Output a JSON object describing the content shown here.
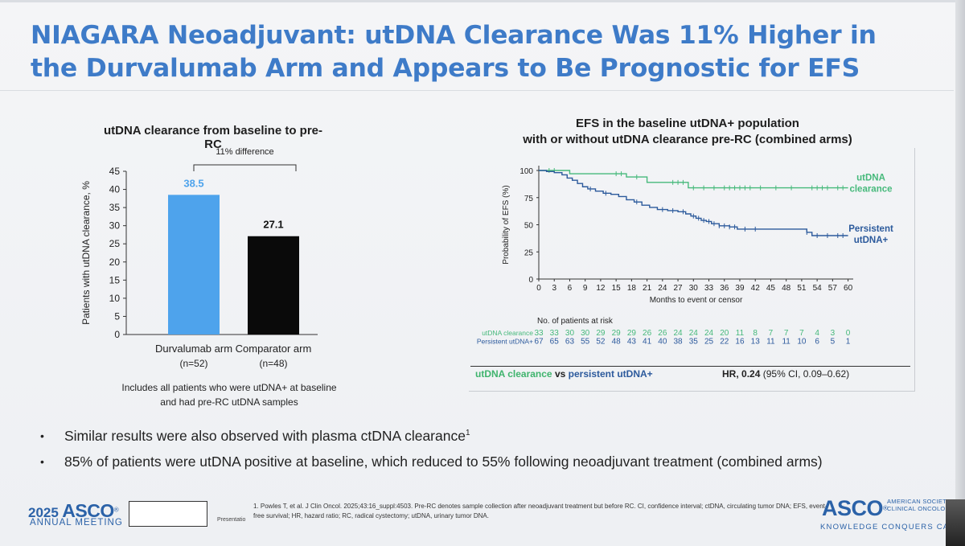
{
  "title": "NIAGARA Neoadjuvant: utDNA Clearance Was 11% Higher in the Durvalumab Arm and Appears to Be Prognostic for EFS",
  "chart_data": [
    {
      "type": "bar",
      "title": "utDNA clearance from baseline to pre-RC",
      "ylabel": "Patients with utDNA clearance, %",
      "ylim": [
        0,
        45
      ],
      "yticks": [
        0,
        5,
        10,
        15,
        20,
        25,
        30,
        35,
        40,
        45
      ],
      "categories": [
        "Durvalumab arm",
        "Comparator arm"
      ],
      "category_n": [
        "(n=52)",
        "(n=48)"
      ],
      "values": [
        38.5,
        27.1
      ],
      "value_labels": [
        "38.5",
        "27.1"
      ],
      "colors": [
        "#4ea3ec",
        "#0a0a0a"
      ],
      "difference_label": "11% difference",
      "note": [
        "Includes all patients who were utDNA+ at baseline",
        "and had pre-RC utDNA samples"
      ]
    },
    {
      "type": "line",
      "title": [
        "EFS in the baseline utDNA+ population",
        "with or without utDNA clearance pre-RC (combined arms)"
      ],
      "xlabel": "Months to event or censor",
      "ylabel": "Probability of EFS (%)",
      "xlim": [
        0,
        61
      ],
      "ylim": [
        0,
        100
      ],
      "xticks": [
        0,
        3,
        6,
        9,
        12,
        15,
        18,
        21,
        24,
        27,
        30,
        33,
        36,
        39,
        42,
        45,
        48,
        51,
        54,
        57,
        60
      ],
      "yticks": [
        0,
        25,
        50,
        75,
        100
      ],
      "series": [
        {
          "name": "utDNA clearance",
          "label_lines": [
            "utDNA",
            "clearance"
          ],
          "color": "#46b97b",
          "steps": [
            [
              0,
              100
            ],
            [
              6,
              97
            ],
            [
              17,
              94
            ],
            [
              21,
              89
            ],
            [
              29,
              84
            ],
            [
              60,
              84
            ]
          ],
          "censors": [
            2,
            3,
            15,
            16,
            19,
            26,
            27,
            28,
            30,
            32,
            34,
            36,
            37,
            38,
            39,
            40,
            41,
            43,
            46,
            49,
            53,
            54,
            55,
            56,
            58,
            59
          ]
        },
        {
          "name": "Persistent utDNA+",
          "label_lines": [
            "Persistent",
            "utDNA+"
          ],
          "color": "#2c5a9c",
          "steps": [
            [
              0,
              100
            ],
            [
              1.5,
              99
            ],
            [
              3,
              98
            ],
            [
              4.5,
              96
            ],
            [
              5.5,
              93
            ],
            [
              6.5,
              91
            ],
            [
              7.5,
              88
            ],
            [
              8.5,
              85
            ],
            [
              9.5,
              83
            ],
            [
              11,
              81
            ],
            [
              12.5,
              79
            ],
            [
              14,
              78
            ],
            [
              15.5,
              76
            ],
            [
              17,
              73
            ],
            [
              18.5,
              71
            ],
            [
              20,
              68
            ],
            [
              21.5,
              66
            ],
            [
              23,
              64
            ],
            [
              25,
              63
            ],
            [
              27,
              62
            ],
            [
              28.5,
              60
            ],
            [
              29.5,
              58
            ],
            [
              30.5,
              56
            ],
            [
              31.5,
              54
            ],
            [
              32.5,
              53
            ],
            [
              33.5,
              51
            ],
            [
              35,
              49
            ],
            [
              37,
              48
            ],
            [
              38.5,
              46
            ],
            [
              40,
              46
            ],
            [
              52,
              43
            ],
            [
              53,
              40
            ],
            [
              60,
              40
            ]
          ],
          "censors": [
            10,
            13,
            19,
            24,
            26,
            28,
            30,
            31,
            32,
            33,
            34,
            35,
            36,
            37,
            38,
            40,
            42,
            52,
            54,
            56,
            58,
            59
          ]
        }
      ],
      "at_risk_title": "No. of patients at risk",
      "at_risk": [
        {
          "label": "utDNA clearance",
          "color": "#46b97b",
          "values": [
            "33",
            "33",
            "30",
            "30",
            "29",
            "29",
            "29",
            "26",
            "26",
            "24",
            "24",
            "24",
            "20",
            "11",
            "8",
            "7",
            "7",
            "7",
            "4",
            "3",
            "0"
          ]
        },
        {
          "label": "Persistent utDNA+",
          "color": "#2c5a9c",
          "values": [
            "67",
            "65",
            "63",
            "55",
            "52",
            "48",
            "43",
            "41",
            "40",
            "38",
            "35",
            "25",
            "22",
            "16",
            "13",
            "11",
            "11",
            "10",
            "6",
            "5",
            "1"
          ]
        }
      ],
      "hr": {
        "label_a": "utDNA clearance",
        "vs": "vs",
        "label_b": "persistent utDNA+",
        "hr_label": "HR,",
        "hr_value": "0.24",
        "ci": "(95% CI, 0.09–0.62)"
      }
    }
  ],
  "bullets": [
    {
      "text": "Similar results were also observed with plasma ctDNA clearance",
      "sup": "1"
    },
    {
      "text": "85% of patients were utDNA positive at baseline, which reduced to 55% following neoadjuvant treatment (combined arms)",
      "sup": ""
    }
  ],
  "footer": {
    "year": "2025",
    "asco": "ASCO",
    "reg": "®",
    "annual_meeting": "ANNUAL MEETING",
    "presenter": "Presentatio",
    "footnote": "1. Powles T, et al. J Clin Oncol. 2025;43:16_suppl:4503. Pre-RC denotes sample collection after neoadjuvant treatment but before RC. CI, confidence interval; ctDNA, circulating tumor DNA; EFS, event-free survival; HR, hazard ratio; RC, radical cystectomy; utDNA, urinary tumor DNA.",
    "society_lines": [
      "AMERICAN SOCIETY OF",
      "CLINICAL ONCOLOGY"
    ],
    "tagline": "KNOWLEDGE CONQUERS CANCER"
  }
}
